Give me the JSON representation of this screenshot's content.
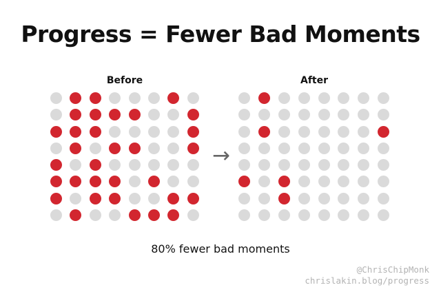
{
  "title": "Progress = Fewer Bad Moments",
  "caption": "80% fewer bad moments",
  "arrow_glyph": "→",
  "attribution": {
    "handle": "@ChrisChipMonk",
    "url": "chrislakin.blog/progress"
  },
  "colors": {
    "bad": "#d2262f",
    "good": "#dadada",
    "text": "#111111",
    "arrow": "#666666",
    "attribution": "#b3b3b3",
    "background": "#ffffff"
  },
  "chart_data": {
    "type": "heatmap",
    "subtype": "waffle-dot-grid",
    "title": "Progress = Fewer Bad Moments",
    "caption": "80% fewer bad moments",
    "cell_legend": {
      "1": "bad moment (red dot)",
      "0": "neutral moment (gray dot)"
    },
    "reduction_percent": 80,
    "layout": {
      "rows": 8,
      "cols": 8,
      "panel_separator": "right-arrow",
      "grid_lines": false
    },
    "panels": [
      {
        "label": "Before",
        "rows": 8,
        "cols": 8,
        "bad_moments": 32,
        "total_moments": 64,
        "grid": [
          "01100010",
          "01111001",
          "11100001",
          "01011001",
          "10100000",
          "11110100",
          "10110011",
          "01001110"
        ]
      },
      {
        "label": "After",
        "rows": 8,
        "cols": 8,
        "bad_moments": 6,
        "total_moments": 64,
        "grid": [
          "01000000",
          "00000000",
          "01000001",
          "00000000",
          "00000000",
          "10100000",
          "00100000",
          "00000000"
        ]
      }
    ]
  }
}
